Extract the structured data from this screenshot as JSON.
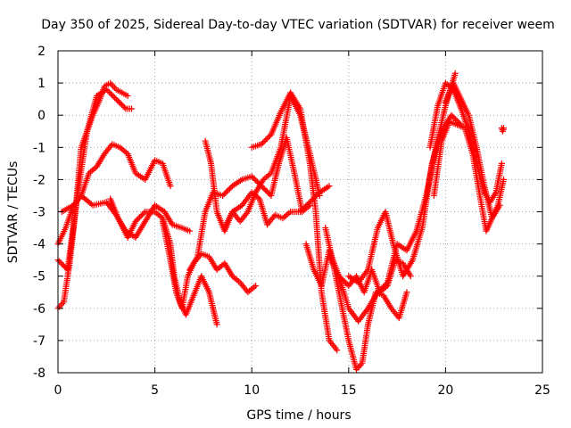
{
  "chart_data": {
    "type": "scatter",
    "title": "Day 350 of 2025, Sidereal Day-to-day VTEC variation (SDTVAR) for receiver weem",
    "xlabel": "GPS time / hours",
    "ylabel": "SDTVAR / TECUs",
    "xlim": [
      0,
      25
    ],
    "ylim": [
      -8,
      2
    ],
    "xticks": [
      "0",
      "5",
      "10",
      "15",
      "20",
      "25"
    ],
    "yticks": [
      "-8",
      "-7",
      "-6",
      "-5",
      "-4",
      "-3",
      "-2",
      "-1",
      "0",
      "1",
      "2"
    ],
    "grid": true,
    "marker": "+",
    "color": "#ff0000",
    "series": [
      {
        "name": "track-a",
        "x": [
          0.0,
          0.3,
          0.6,
          0.9,
          1.2,
          1.5,
          1.8,
          2.1,
          2.4,
          2.7,
          3.0,
          3.3,
          3.6
        ],
        "y": [
          -6.0,
          -5.8,
          -4.6,
          -3.0,
          -1.0,
          -0.5,
          0.0,
          0.4,
          0.9,
          1.0,
          0.8,
          0.7,
          0.6
        ]
      },
      {
        "name": "track-b",
        "x": [
          0.0,
          0.5,
          1.0,
          1.5,
          2.0,
          2.5,
          3.0,
          3.5,
          3.8
        ],
        "y": [
          -4.5,
          -4.8,
          -2.5,
          -0.5,
          0.6,
          0.8,
          0.5,
          0.2,
          0.2
        ]
      },
      {
        "name": "track-c",
        "x": [
          0.0,
          0.4,
          0.8,
          1.2,
          1.6,
          2.0,
          2.4,
          2.8,
          3.2,
          3.6,
          4.0,
          4.5,
          5.0,
          5.4,
          5.8
        ],
        "y": [
          -4.0,
          -3.5,
          -2.8,
          -2.5,
          -1.8,
          -1.6,
          -1.2,
          -0.9,
          -1.0,
          -1.2,
          -1.8,
          -2.0,
          -1.4,
          -1.5,
          -2.2
        ]
      },
      {
        "name": "track-d",
        "x": [
          0.2,
          0.8,
          1.2,
          1.8,
          2.5,
          3.0,
          3.5,
          4.0,
          4.5,
          5.0,
          5.5,
          5.9,
          6.4,
          6.8
        ],
        "y": [
          -3.0,
          -2.8,
          -2.5,
          -2.8,
          -2.7,
          -3.1,
          -3.6,
          -3.8,
          -3.3,
          -2.8,
          -3.0,
          -3.4,
          -3.5,
          -3.6
        ]
      },
      {
        "name": "track-e",
        "x": [
          2.7,
          3.1,
          3.6,
          4.0,
          4.5,
          5.0,
          5.4,
          5.8,
          6.0,
          6.3,
          6.6,
          7.0,
          7.4,
          7.8,
          8.2
        ],
        "y": [
          -2.6,
          -3.2,
          -3.8,
          -3.3,
          -3.0,
          -3.0,
          -3.2,
          -4.0,
          -5.0,
          -5.8,
          -6.2,
          -5.6,
          -5.0,
          -5.5,
          -6.5
        ]
      },
      {
        "name": "track-f",
        "x": [
          5.4,
          5.8,
          6.1,
          6.4,
          6.7,
          7.0,
          7.4,
          7.8,
          8.2,
          8.6,
          9.0,
          9.4,
          9.8,
          10.2
        ],
        "y": [
          -3.3,
          -4.5,
          -5.5,
          -6.0,
          -5.0,
          -4.6,
          -4.3,
          -4.4,
          -4.8,
          -4.6,
          -5.0,
          -5.2,
          -5.5,
          -5.3
        ]
      },
      {
        "name": "track-g",
        "x": [
          7.6,
          7.9,
          8.2,
          8.6,
          9.0,
          9.4,
          9.8,
          10.2,
          10.6,
          11.0,
          11.5,
          12.0,
          12.5,
          13.0,
          13.5
        ],
        "y": [
          -0.8,
          -1.5,
          -3.0,
          -3.6,
          -3.0,
          -3.3,
          -3.0,
          -2.4,
          -2.0,
          -1.8,
          -1.0,
          0.6,
          0.0,
          -1.2,
          -2.5
        ]
      },
      {
        "name": "track-h",
        "x": [
          6.8,
          7.2,
          7.6,
          8.0,
          8.5,
          9.0,
          9.5,
          10.0,
          10.5,
          11.0,
          11.4,
          11.8,
          12.2,
          12.6,
          13.0
        ],
        "y": [
          -4.8,
          -4.4,
          -3.0,
          -2.4,
          -2.5,
          -2.2,
          -2.0,
          -1.9,
          -2.2,
          -2.5,
          -1.5,
          -0.7,
          -1.8,
          -3.0,
          -2.8
        ]
      },
      {
        "name": "track-i",
        "x": [
          8.6,
          9.0,
          9.5,
          10.0,
          10.4,
          10.8,
          11.2,
          11.6,
          12.0,
          12.5,
          13.0,
          13.5,
          14.0
        ],
        "y": [
          -3.5,
          -3.0,
          -2.8,
          -2.4,
          -2.6,
          -3.4,
          -3.1,
          -3.2,
          -3.0,
          -3.0,
          -2.7,
          -2.4,
          -2.2
        ]
      },
      {
        "name": "track-j",
        "x": [
          10.0,
          10.5,
          11.0,
          11.5,
          12.0,
          12.5,
          13.0,
          13.3,
          13.6,
          14.0,
          14.4
        ],
        "y": [
          -1.0,
          -0.9,
          -0.6,
          0.1,
          0.7,
          0.2,
          -1.5,
          -3.0,
          -5.5,
          -7.0,
          -7.3
        ]
      },
      {
        "name": "track-k",
        "x": [
          12.8,
          13.2,
          13.6,
          14.0,
          14.5,
          15.0,
          15.4,
          15.8,
          16.2,
          16.6,
          17.0,
          17.4,
          17.8,
          18.2
        ],
        "y": [
          -4.0,
          -4.8,
          -5.3,
          -4.2,
          -5.0,
          -5.3,
          -5.0,
          -5.5,
          -4.8,
          -5.5,
          -5.3,
          -4.5,
          -4.6,
          -5.0
        ]
      },
      {
        "name": "track-l",
        "x": [
          13.8,
          14.2,
          14.6,
          15.0,
          15.4,
          15.7,
          16.0,
          16.4,
          16.8,
          17.2,
          17.6,
          18.0
        ],
        "y": [
          -3.5,
          -4.6,
          -5.8,
          -7.0,
          -7.9,
          -7.7,
          -6.5,
          -5.5,
          -5.6,
          -6.0,
          -6.3,
          -5.5
        ]
      },
      {
        "name": "track-m",
        "x": [
          14.0,
          14.5,
          15.0,
          15.5,
          16.0,
          16.5,
          17.0,
          17.5,
          18.0,
          18.5,
          19.0,
          19.5,
          20.0,
          20.5
        ],
        "y": [
          -4.4,
          -5.0,
          -6.0,
          -6.4,
          -6.0,
          -5.5,
          -5.2,
          -4.0,
          -4.2,
          -3.6,
          -2.5,
          -1.0,
          0.3,
          1.3
        ]
      },
      {
        "name": "track-n",
        "x": [
          15.0,
          15.5,
          16.0,
          16.5,
          16.9,
          17.3,
          17.8,
          18.3,
          18.8,
          19.3,
          19.8,
          20.3,
          20.8
        ],
        "y": [
          -5.0,
          -5.2,
          -4.8,
          -3.5,
          -3.0,
          -4.0,
          -5.0,
          -4.5,
          -3.5,
          -1.5,
          -0.5,
          0.0,
          -0.3
        ]
      },
      {
        "name": "track-o",
        "x": [
          19.2,
          19.6,
          20.0,
          20.4,
          20.8,
          21.2,
          21.6,
          22.0,
          22.3,
          22.6,
          22.9
        ],
        "y": [
          -1.0,
          0.3,
          1.0,
          0.8,
          0.2,
          -0.5,
          -1.5,
          -2.4,
          -2.7,
          -2.4,
          -1.5
        ]
      },
      {
        "name": "track-p",
        "x": [
          19.4,
          19.8,
          20.2,
          20.6,
          21.0,
          21.4,
          21.8,
          22.1,
          22.4,
          22.7,
          23.0
        ],
        "y": [
          -2.5,
          -0.8,
          -0.2,
          -0.3,
          -0.4,
          -1.2,
          -2.6,
          -3.6,
          -3.2,
          -2.8,
          -2.0
        ]
      },
      {
        "name": "track-q",
        "x": [
          20.0,
          20.4,
          20.8,
          21.2,
          21.6,
          22.0,
          22.4,
          22.8
        ],
        "y": [
          0.4,
          1.0,
          0.5,
          0.0,
          -1.0,
          -2.2,
          -3.2,
          -2.8
        ]
      },
      {
        "name": "track-r",
        "x": [
          22.9,
          22.95,
          23.0
        ],
        "y": [
          -0.4,
          -0.5,
          -0.4
        ]
      }
    ]
  }
}
